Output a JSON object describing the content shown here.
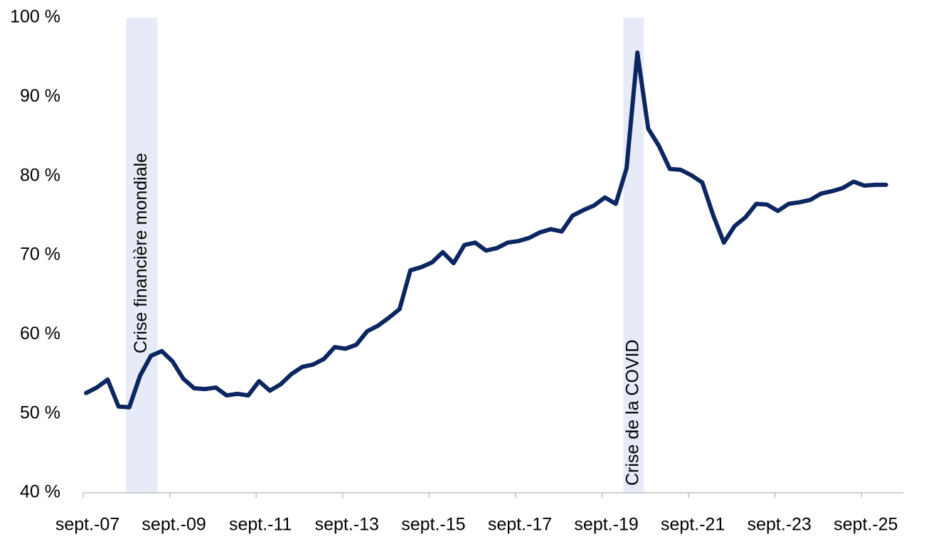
{
  "chart_data": {
    "type": "line",
    "categories": [
      "sept.-07",
      null,
      null,
      null,
      null,
      null,
      null,
      null,
      "sept.-09",
      null,
      null,
      null,
      null,
      null,
      null,
      null,
      "sept.-11",
      null,
      null,
      null,
      null,
      null,
      null,
      null,
      "sept.-13",
      null,
      null,
      null,
      null,
      null,
      null,
      null,
      "sept.-15",
      null,
      null,
      null,
      null,
      null,
      null,
      null,
      "sept.-17",
      null,
      null,
      null,
      null,
      null,
      null,
      null,
      "sept.-19",
      null,
      null,
      null,
      null,
      null,
      null,
      null,
      "sept.-21",
      null,
      null,
      null,
      null,
      null,
      null,
      null,
      "sept.-23",
      null,
      null,
      null,
      null,
      null,
      null,
      null,
      "sept.-25",
      null,
      null
    ],
    "series": [
      {
        "color": "#0b2660",
        "values": [
          52.6,
          53.3,
          54.3,
          50.9,
          50.8,
          54.8,
          57.3,
          57.9,
          56.6,
          54.4,
          53.2,
          53.1,
          53.3,
          52.3,
          52.5,
          52.3,
          54.1,
          52.9,
          53.7,
          55.0,
          55.9,
          56.2,
          56.9,
          58.4,
          58.2,
          58.7,
          60.4,
          61.1,
          62.1,
          63.2,
          68.1,
          68.5,
          69.1,
          70.4,
          69.0,
          71.3,
          71.6,
          70.6,
          70.9,
          71.6,
          71.8,
          72.2,
          72.9,
          73.3,
          73.0,
          75.0,
          75.7,
          76.3,
          77.3,
          76.5,
          81.0,
          95.6,
          86.0,
          83.8,
          80.9,
          80.8,
          80.1,
          79.2,
          75.1,
          71.6,
          73.7,
          74.8,
          76.5,
          76.4,
          75.6,
          76.5,
          76.7,
          77.0,
          77.8,
          78.1,
          78.5,
          79.3,
          78.8,
          78.9,
          78.9
        ]
      }
    ],
    "ylim": [
      40,
      100
    ],
    "yticks": [
      {
        "value": 40,
        "label": "40 %"
      },
      {
        "value": 50,
        "label": "50 %"
      },
      {
        "value": 60,
        "label": "60 %"
      },
      {
        "value": 70,
        "label": "70 %"
      },
      {
        "value": 80,
        "label": "80 %"
      },
      {
        "value": 90,
        "label": "90 %"
      },
      {
        "value": 100,
        "label": "100 %"
      }
    ],
    "grid": false,
    "shaded_periods": [
      {
        "label": "Crise financière mondiale",
        "from": 3.7,
        "to": 6.6,
        "color": "#e6ebf7"
      },
      {
        "label": "Crise de la COVID",
        "from": 49.7,
        "to": 51.6,
        "color": "#e6ebf7"
      }
    ]
  }
}
